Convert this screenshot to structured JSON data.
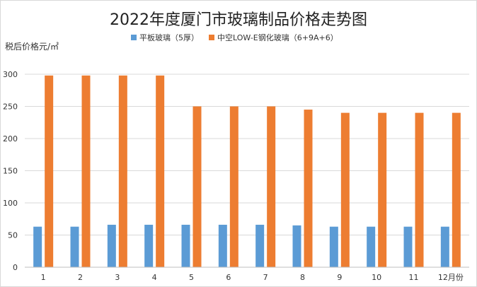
{
  "chart_data": {
    "type": "bar",
    "title": "2022年度厦门市玻璃制品价格走势图",
    "ylabel": "税后价格元/㎡",
    "xlabel": "",
    "categories": [
      "1",
      "2",
      "3",
      "4",
      "5",
      "6",
      "7",
      "8",
      "9",
      "10",
      "11",
      "12月份"
    ],
    "ylim": [
      0,
      300
    ],
    "yticks": [
      0,
      50,
      100,
      150,
      200,
      250,
      300
    ],
    "grid": true,
    "legend_position": "top-center",
    "series": [
      {
        "name": "平板玻璃（5厚）",
        "color": "#5b9bd5",
        "values": [
          63,
          63,
          66,
          66,
          66,
          66,
          66,
          65,
          63,
          63,
          63,
          63
        ]
      },
      {
        "name": "中空LOW-E钢化玻璃（6+9A+6）",
        "color": "#ed7d31",
        "values": [
          298,
          298,
          298,
          298,
          250,
          250,
          250,
          245,
          240,
          240,
          240,
          240
        ]
      }
    ]
  }
}
